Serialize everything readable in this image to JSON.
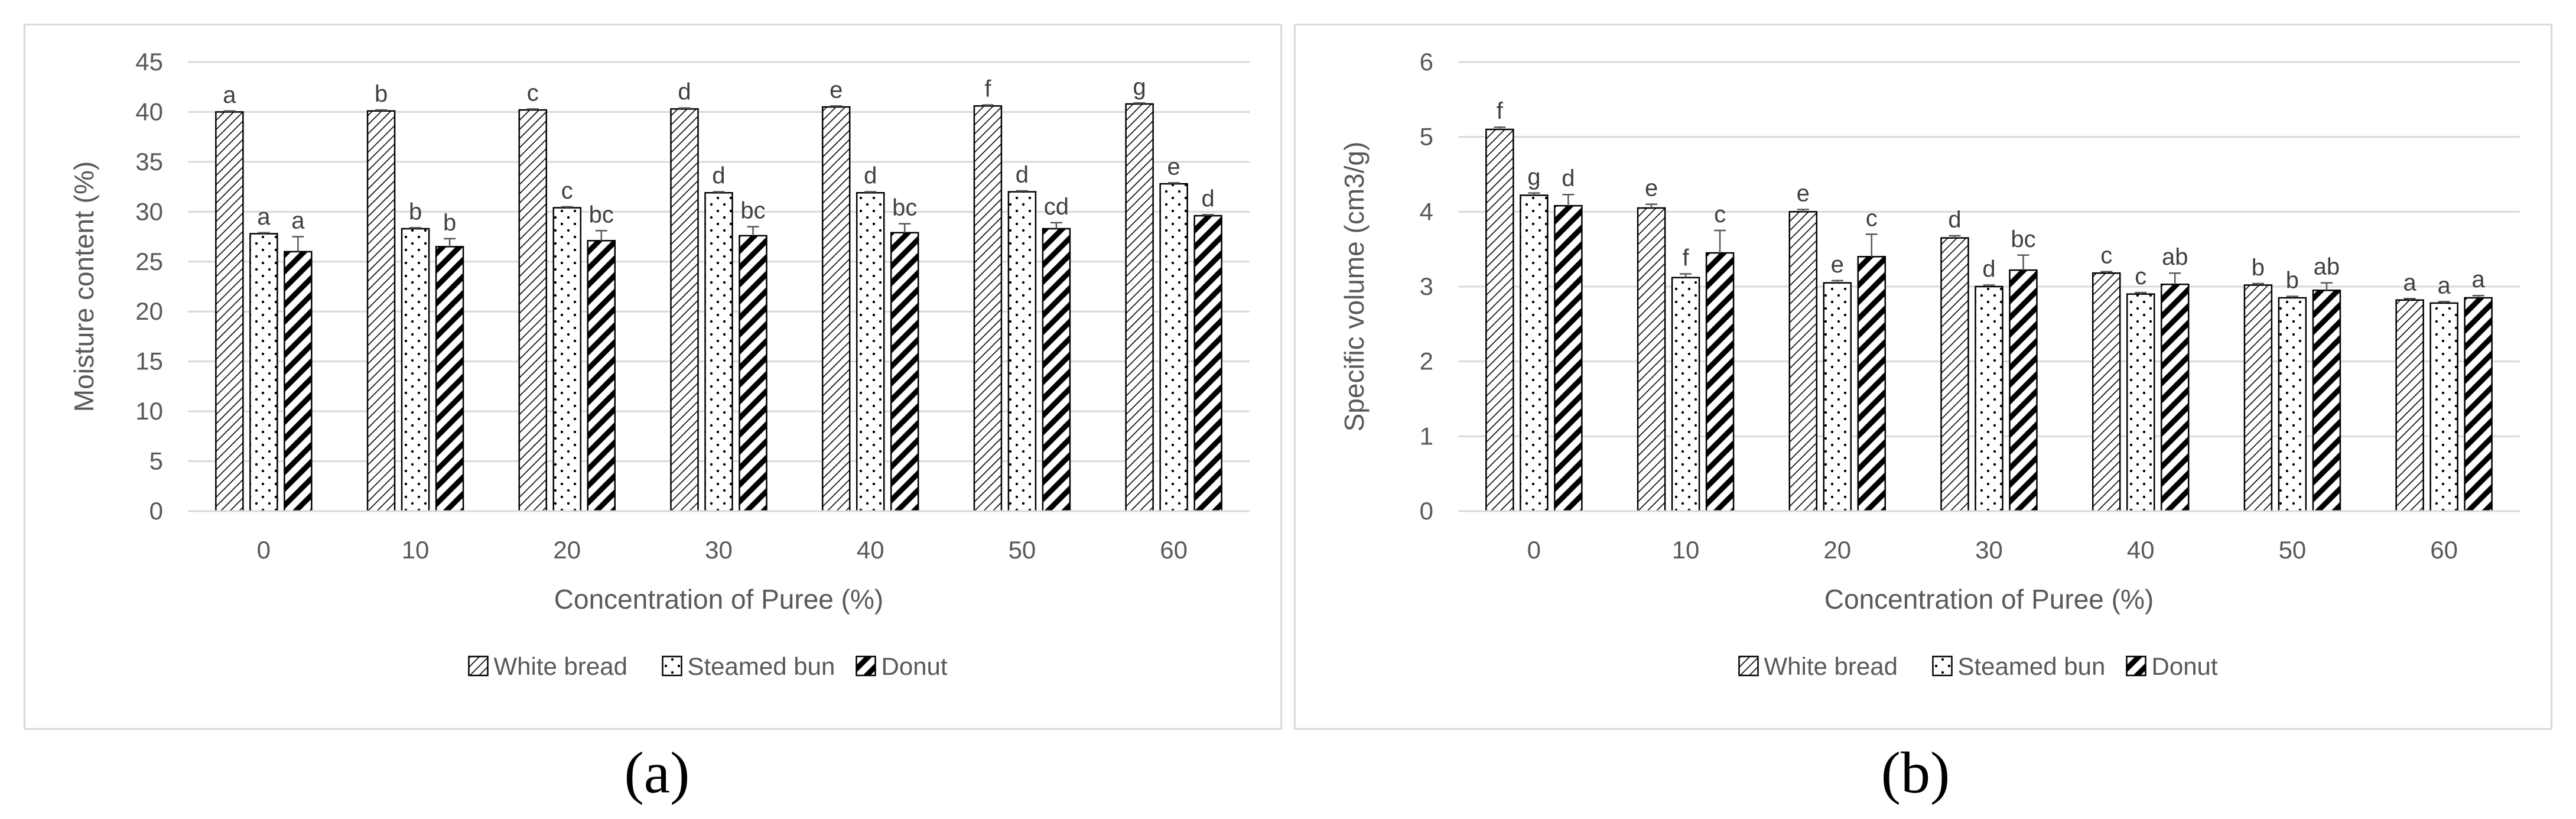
{
  "chart_data": [
    {
      "type": "bar",
      "panel": "a",
      "title": "",
      "xlabel": "Concentration of Puree (%)",
      "ylabel": "Moisture content (%)",
      "ylim": [
        0,
        45
      ],
      "yticks": [
        0,
        5,
        10,
        15,
        20,
        25,
        30,
        35,
        40,
        45
      ],
      "grid": true,
      "legend_position": "bottom",
      "categories": [
        "0",
        "10",
        "20",
        "30",
        "40",
        "50",
        "60"
      ],
      "series": [
        {
          "name": "White bread",
          "pattern": "dense-diagonal",
          "values": [
            40.0,
            40.1,
            40.2,
            40.3,
            40.5,
            40.6,
            40.8
          ],
          "errors": [
            0.1,
            0.1,
            0.1,
            0.1,
            0.1,
            0.1,
            0.1
          ],
          "labels": [
            "a",
            "b",
            "c",
            "d",
            "e",
            "f",
            "g"
          ]
        },
        {
          "name": "Steamed bun",
          "pattern": "dots",
          "values": [
            27.8,
            28.3,
            30.4,
            31.9,
            31.9,
            32.0,
            32.8
          ],
          "errors": [
            0.1,
            0.1,
            0.1,
            0.1,
            0.1,
            0.1,
            0.1
          ],
          "labels": [
            "a",
            "b",
            "c",
            "d",
            "d",
            "d",
            "e"
          ]
        },
        {
          "name": "Donut",
          "pattern": "wide-diagonal",
          "values": [
            26.0,
            26.5,
            27.1,
            27.6,
            27.9,
            28.3,
            29.6
          ],
          "errors": [
            1.5,
            0.8,
            1.0,
            0.9,
            0.9,
            0.6,
            0.1
          ],
          "labels": [
            "a",
            "b",
            "bc",
            "bc",
            "bc",
            "cd",
            "d"
          ]
        }
      ],
      "caption": "(a)"
    },
    {
      "type": "bar",
      "panel": "b",
      "title": "",
      "xlabel": "Concentration of Puree (%)",
      "ylabel": "Specific volume (cm3/g)",
      "ylim": [
        0,
        6
      ],
      "yticks": [
        0,
        1,
        2,
        3,
        4,
        5,
        6
      ],
      "grid": true,
      "legend_position": "bottom",
      "categories": [
        "0",
        "10",
        "20",
        "30",
        "40",
        "50",
        "60"
      ],
      "series": [
        {
          "name": "White bread",
          "pattern": "dense-diagonal",
          "values": [
            5.1,
            4.05,
            4.0,
            3.65,
            3.18,
            3.02,
            2.82
          ],
          "errors": [
            0.03,
            0.05,
            0.03,
            0.03,
            0.02,
            0.02,
            0.02
          ],
          "labels": [
            "f",
            "e",
            "e",
            "d",
            "c",
            "b",
            "a"
          ]
        },
        {
          "name": "Steamed bun",
          "pattern": "dots",
          "values": [
            4.22,
            3.12,
            3.05,
            3.0,
            2.9,
            2.85,
            2.78
          ],
          "errors": [
            0.03,
            0.05,
            0.03,
            0.02,
            0.02,
            0.02,
            0.02
          ],
          "labels": [
            "g",
            "f",
            "e",
            "d",
            "c",
            "b",
            "a"
          ]
        },
        {
          "name": "Donut",
          "pattern": "wide-diagonal",
          "values": [
            4.08,
            3.45,
            3.4,
            3.22,
            3.03,
            2.95,
            2.85
          ],
          "errors": [
            0.15,
            0.3,
            0.3,
            0.2,
            0.15,
            0.1,
            0.03
          ],
          "labels": [
            "d",
            "c",
            "c",
            "bc",
            "ab",
            "ab",
            "a"
          ]
        }
      ],
      "caption": "(b)"
    }
  ],
  "colors": {
    "bar_outline": "#000000",
    "grid": "#d9d9d9",
    "axis_text": "#595959",
    "panel_border": "#d9d9d9"
  }
}
